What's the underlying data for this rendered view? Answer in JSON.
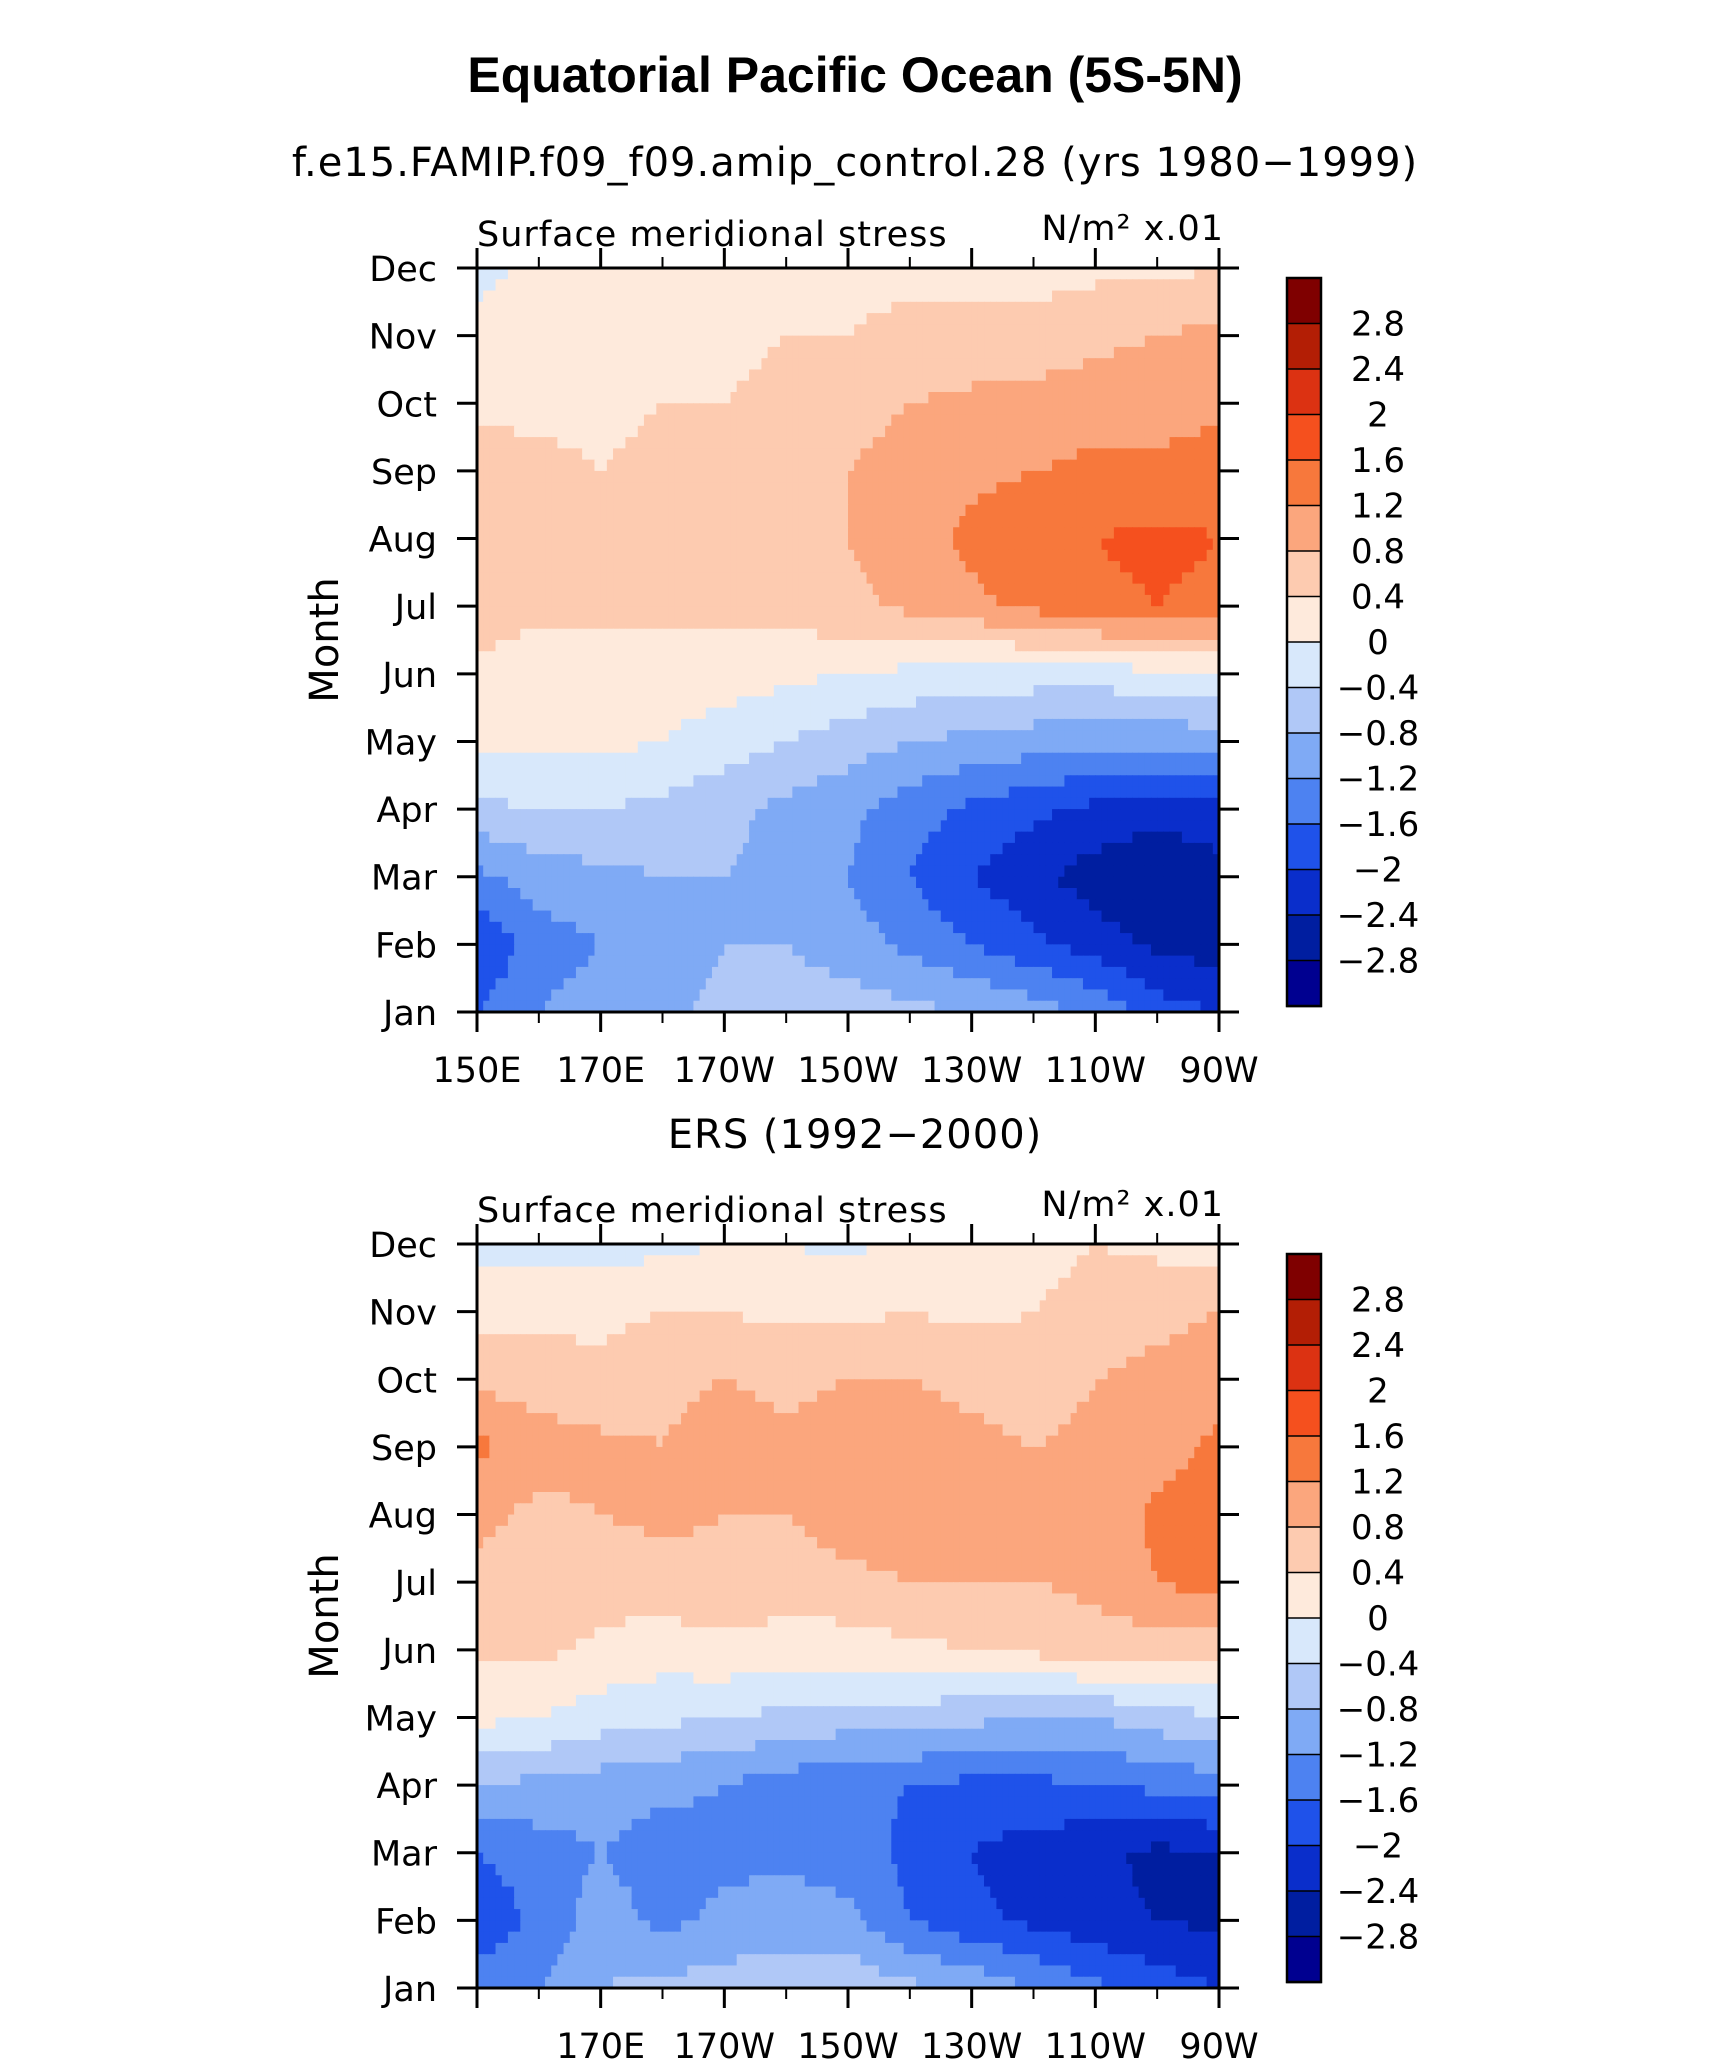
{
  "title": "Equatorial Pacific Ocean (5S-5N)",
  "panel_titles": [
    "f.e15.FAMIP.f09_f09.amip_control.28 (yrs 1980−1999)",
    "ERS (1992−2000)"
  ],
  "colorbar": {
    "labels": [
      "2.8",
      "2.4",
      "2",
      "1.6",
      "1.2",
      "0.8",
      "0.4",
      "0",
      "−0.4",
      "−0.8",
      "−1.2",
      "−1.6",
      "−2",
      "−2.4",
      "−2.8"
    ],
    "colors": [
      "#7f0000",
      "#b31e05",
      "#dc3212",
      "#f5501e",
      "#f7783c",
      "#fba67d",
      "#fdcbb0",
      "#feeadc",
      "#d8e8fb",
      "#b0c8f7",
      "#7faaf5",
      "#4d82f1",
      "#1f52ea",
      "#0a2ecb",
      "#001ea0",
      "#000090"
    ]
  },
  "chart_data": [
    {
      "type": "heatmap",
      "title": "Surface meridional stress",
      "units": "N/m² x.01",
      "ylabel": "Month",
      "xlabel": "",
      "yticks": [
        "Jan",
        "Feb",
        "Mar",
        "Apr",
        "May",
        "Jun",
        "Jul",
        "Aug",
        "Sep",
        "Oct",
        "Nov",
        "Dec"
      ],
      "xticks": [
        "150E",
        "170E",
        "170W",
        "150W",
        "130W",
        "110W",
        "90W"
      ],
      "x": [
        "150E",
        "160E",
        "170E",
        "180",
        "170W",
        "160W",
        "150W",
        "140W",
        "130W",
        "120W",
        "110W",
        "100W",
        "90W"
      ],
      "y": [
        "Jan",
        "Feb",
        "Mar",
        "Apr",
        "May",
        "Jun",
        "Jul",
        "Aug",
        "Sep",
        "Oct",
        "Nov",
        "Dec"
      ],
      "z": [
        [
          -1.6,
          -1.2,
          -1.0,
          -0.9,
          -0.7,
          -0.6,
          -0.6,
          -0.7,
          -0.8,
          -1.0,
          -1.3,
          -1.8,
          -2.0
        ],
        [
          -2.0,
          -1.4,
          -1.2,
          -1.0,
          -0.8,
          -0.8,
          -1.0,
          -1.3,
          -1.6,
          -1.9,
          -2.2,
          -2.5,
          -2.6
        ],
        [
          -1.3,
          -1.0,
          -0.9,
          -0.8,
          -0.8,
          -0.9,
          -1.2,
          -1.6,
          -2.0,
          -2.3,
          -2.6,
          -2.8,
          -2.6
        ],
        [
          -0.5,
          -0.4,
          -0.4,
          -0.5,
          -0.7,
          -0.9,
          -1.1,
          -1.4,
          -1.7,
          -1.9,
          -2.1,
          -2.2,
          -2.1
        ],
        [
          0.1,
          0.1,
          0.1,
          0.0,
          -0.2,
          -0.4,
          -0.6,
          -0.8,
          -0.9,
          -1.0,
          -1.1,
          -1.1,
          -1.0
        ],
        [
          0.3,
          0.2,
          0.2,
          0.2,
          0.2,
          0.1,
          0.0,
          -0.1,
          -0.2,
          -0.2,
          -0.2,
          -0.1,
          0.0
        ],
        [
          0.6,
          0.5,
          0.5,
          0.5,
          0.5,
          0.6,
          0.7,
          0.9,
          1.1,
          1.3,
          1.5,
          1.6,
          1.5
        ],
        [
          0.8,
          0.5,
          0.5,
          0.5,
          0.5,
          0.6,
          0.8,
          1.0,
          1.3,
          1.5,
          1.6,
          1.7,
          1.6
        ],
        [
          0.6,
          0.5,
          0.4,
          0.5,
          0.5,
          0.6,
          0.8,
          1.0,
          1.1,
          1.2,
          1.3,
          1.3,
          1.4
        ],
        [
          0.3,
          0.3,
          0.3,
          0.4,
          0.4,
          0.5,
          0.6,
          0.8,
          0.9,
          0.9,
          1.0,
          1.0,
          1.1
        ],
        [
          0.1,
          0.1,
          0.2,
          0.3,
          0.3,
          0.4,
          0.4,
          0.5,
          0.5,
          0.6,
          0.7,
          0.8,
          0.9
        ],
        [
          -0.1,
          0.1,
          0.1,
          0.2,
          0.3,
          0.3,
          0.3,
          0.3,
          0.3,
          0.2,
          0.3,
          0.3,
          0.4
        ]
      ]
    },
    {
      "type": "heatmap",
      "title": "Surface meridional stress",
      "units": "N/m² x.01",
      "ylabel": "Month",
      "xlabel": "",
      "yticks": [
        "Jan",
        "Feb",
        "Mar",
        "Apr",
        "May",
        "Jun",
        "Jul",
        "Aug",
        "Sep",
        "Oct",
        "Nov",
        "Dec"
      ],
      "xticks": [
        "170E",
        "170W",
        "150W",
        "130W",
        "110W",
        "90W"
      ],
      "x": [
        "150E",
        "160E",
        "170E",
        "180",
        "170W",
        "160W",
        "150W",
        "140W",
        "130W",
        "120W",
        "110W",
        "100W",
        "90W"
      ],
      "y": [
        "Jan",
        "Feb",
        "Mar",
        "Apr",
        "May",
        "Jun",
        "Jul",
        "Aug",
        "Sep",
        "Oct",
        "Nov",
        "Dec"
      ],
      "z": [
        [
          -1.4,
          -1.2,
          -0.8,
          -0.7,
          -0.6,
          -0.6,
          -0.5,
          -0.7,
          -0.9,
          -1.2,
          -1.5,
          -1.8,
          -2.0
        ],
        [
          -1.9,
          -1.5,
          -1.0,
          -1.3,
          -1.1,
          -1.0,
          -1.1,
          -1.6,
          -1.9,
          -2.1,
          -2.3,
          -2.4,
          -2.5
        ],
        [
          -1.6,
          -1.4,
          -1.2,
          -1.4,
          -1.3,
          -1.3,
          -1.4,
          -1.7,
          -2.0,
          -2.2,
          -2.3,
          -2.5,
          -2.4
        ],
        [
          -0.8,
          -0.9,
          -1.0,
          -1.1,
          -1.2,
          -1.4,
          -1.5,
          -1.6,
          -1.7,
          -1.7,
          -1.6,
          -1.5,
          -1.4
        ],
        [
          0.1,
          0.0,
          -0.2,
          -0.3,
          -0.4,
          -0.5,
          -0.6,
          -0.6,
          -0.7,
          -0.8,
          -0.8,
          -0.6,
          -0.4
        ],
        [
          0.5,
          0.5,
          0.3,
          0.2,
          0.3,
          0.2,
          0.2,
          0.3,
          0.4,
          0.5,
          0.6,
          0.6,
          0.5
        ],
        [
          0.7,
          0.7,
          0.6,
          0.6,
          0.7,
          0.6,
          0.7,
          0.8,
          0.8,
          0.8,
          0.9,
          1.2,
          1.4
        ],
        [
          0.9,
          0.7,
          0.8,
          0.9,
          0.8,
          0.8,
          1.0,
          1.0,
          1.0,
          0.9,
          0.9,
          1.3,
          1.4
        ],
        [
          1.3,
          1.0,
          0.9,
          0.8,
          1.0,
          0.9,
          1.0,
          1.0,
          0.9,
          0.8,
          0.9,
          1.0,
          1.3
        ],
        [
          0.7,
          0.6,
          0.5,
          0.7,
          0.8,
          0.7,
          0.8,
          0.8,
          0.7,
          0.6,
          0.8,
          0.9,
          1.0
        ],
        [
          0.3,
          0.3,
          0.3,
          0.4,
          0.4,
          0.3,
          0.3,
          0.4,
          0.3,
          0.4,
          0.6,
          0.7,
          0.8
        ],
        [
          -0.1,
          -0.2,
          -0.2,
          -0.1,
          0.0,
          0.0,
          -0.1,
          0.1,
          0.2,
          0.2,
          0.4,
          0.3,
          0.2
        ]
      ]
    }
  ]
}
